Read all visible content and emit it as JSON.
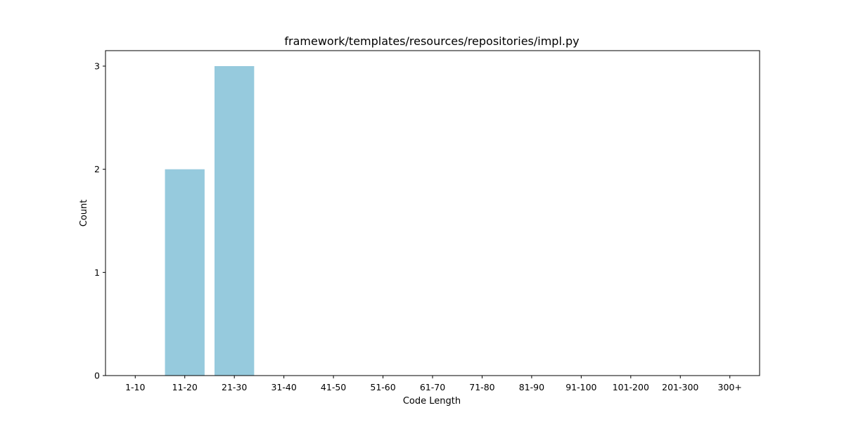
{
  "chart_data": {
    "type": "bar",
    "title": "framework/templates/resources/repositories/impl.py",
    "xlabel": "Code Length",
    "ylabel": "Count",
    "categories": [
      "1-10",
      "11-20",
      "21-30",
      "31-40",
      "41-50",
      "51-60",
      "61-70",
      "71-80",
      "81-90",
      "91-100",
      "101-200",
      "201-300",
      "300+"
    ],
    "values": [
      0,
      2,
      3,
      0,
      0,
      0,
      0,
      0,
      0,
      0,
      0,
      0,
      0
    ],
    "ylim": [
      0,
      3.15
    ],
    "yticks": [
      0,
      1,
      2,
      3
    ],
    "grid": false,
    "bar_color": "#96cadd"
  }
}
